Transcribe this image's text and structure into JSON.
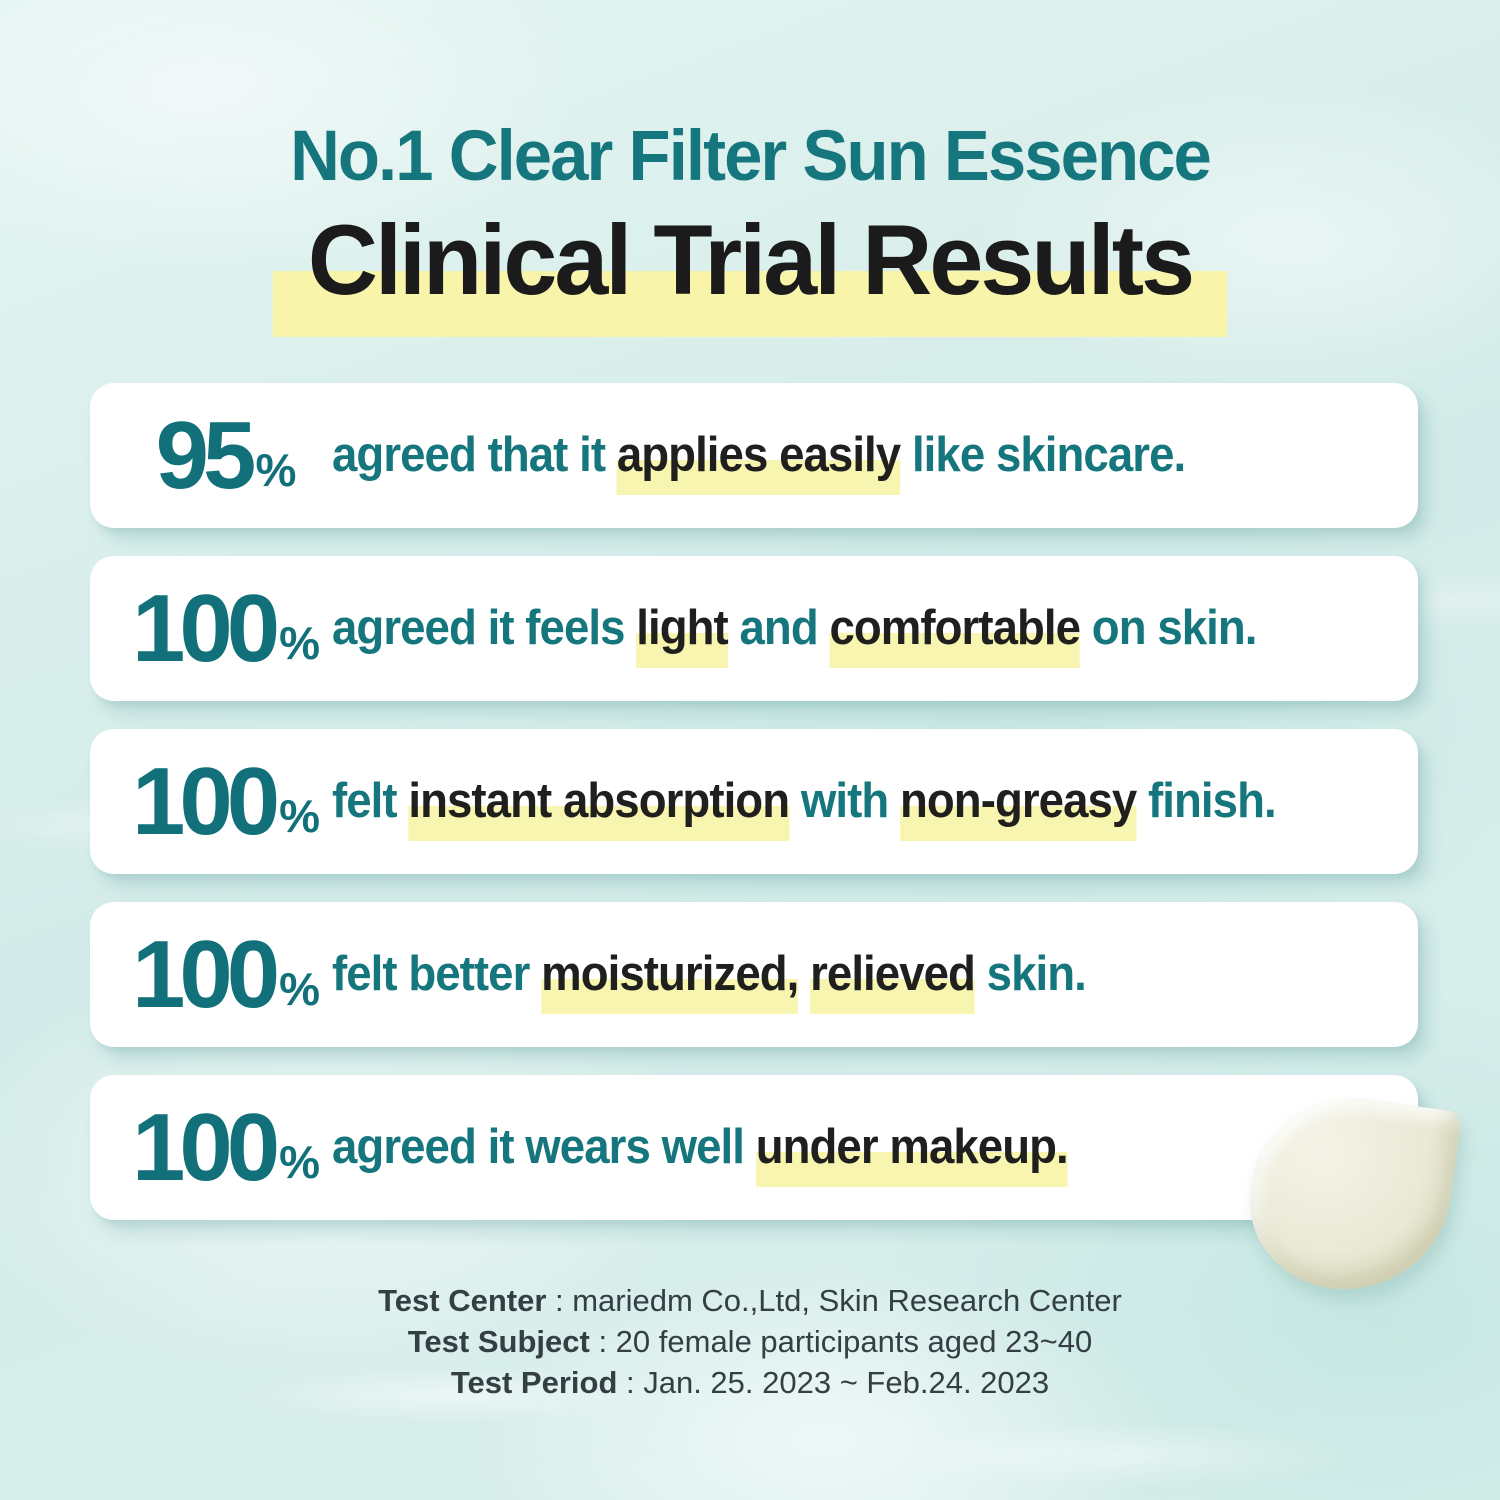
{
  "header": {
    "product": "No.1 Clear Filter Sun Essence",
    "title": "Clinical Trial Results"
  },
  "colors": {
    "teal": "#16767d",
    "black": "#1f1f1d",
    "highlight_yellow": "#f8f5b0",
    "card_background": "#ffffff",
    "page_background": "#d7eeec",
    "footer_text": "#343f44",
    "cream_swatch": "#eae9d6"
  },
  "results": [
    {
      "percent": "95",
      "percent_sign": "%",
      "segments": [
        {
          "text": "agreed that it ",
          "highlight": false
        },
        {
          "text": "applies easily",
          "highlight": true
        },
        {
          "text": " like skincare.",
          "highlight": false
        }
      ]
    },
    {
      "percent": "100",
      "percent_sign": "%",
      "segments": [
        {
          "text": "agreed it feels ",
          "highlight": false
        },
        {
          "text": "light",
          "highlight": true
        },
        {
          "text": " and ",
          "highlight": false
        },
        {
          "text": "comfortable",
          "highlight": true
        },
        {
          "text": " on skin.",
          "highlight": false
        }
      ]
    },
    {
      "percent": "100",
      "percent_sign": "%",
      "segments": [
        {
          "text": "felt ",
          "highlight": false
        },
        {
          "text": "instant absorption",
          "highlight": true
        },
        {
          "text": " with ",
          "highlight": false
        },
        {
          "text": "non-greasy",
          "highlight": true
        },
        {
          "text": " finish.",
          "highlight": false
        }
      ]
    },
    {
      "percent": "100",
      "percent_sign": "%",
      "segments": [
        {
          "text": "felt better ",
          "highlight": false
        },
        {
          "text": "moisturized,",
          "highlight": true
        },
        {
          "text": " ",
          "highlight": false
        },
        {
          "text": "relieved",
          "highlight": true
        },
        {
          "text": " skin.",
          "highlight": false
        }
      ]
    },
    {
      "percent": "100",
      "percent_sign": "%",
      "segments": [
        {
          "text": "agreed it wears well ",
          "highlight": false
        },
        {
          "text": "under makeup.",
          "highlight": true
        }
      ]
    }
  ],
  "footer": {
    "lines": [
      {
        "label": "Test Center",
        "value": " : mariedm Co.,Ltd, Skin Research Center"
      },
      {
        "label": "Test Subject",
        "value": " : 20 female participants aged 23~40"
      },
      {
        "label": "Test Period",
        "value": " : Jan. 25. 2023 ~ Feb.24. 2023"
      }
    ]
  }
}
